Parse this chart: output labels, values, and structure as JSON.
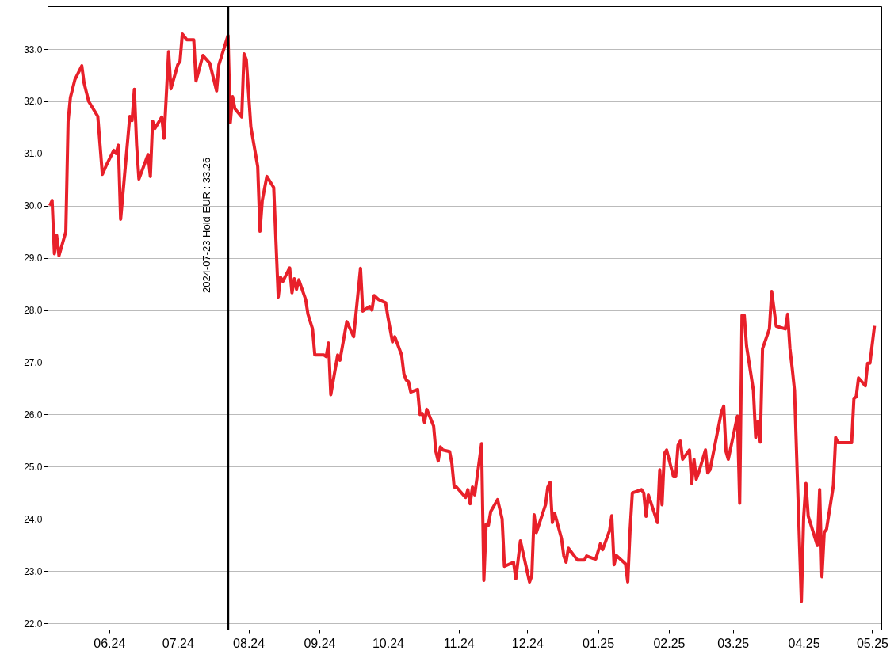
{
  "chart_data": {
    "type": "line",
    "xlim": [
      "2024-05-05",
      "2025-05-05"
    ],
    "ylim": [
      21.88,
      33.82
    ],
    "xticks": [
      {
        "value": "2024-06-01",
        "label": "06.24"
      },
      {
        "value": "2024-07-01",
        "label": "07.24"
      },
      {
        "value": "2024-08-01",
        "label": "08.24"
      },
      {
        "value": "2024-09-01",
        "label": "09.24"
      },
      {
        "value": "2024-10-01",
        "label": "10.24"
      },
      {
        "value": "2024-11-01",
        "label": "11.24"
      },
      {
        "value": "2024-12-01",
        "label": "12.24"
      },
      {
        "value": "2025-01-01",
        "label": "01.25"
      },
      {
        "value": "2025-02-01",
        "label": "02.25"
      },
      {
        "value": "2025-03-01",
        "label": "03.25"
      },
      {
        "value": "2025-04-01",
        "label": "04.25"
      },
      {
        "value": "2025-05-01",
        "label": "05.25"
      }
    ],
    "yticks": [
      {
        "value": 22,
        "label": "22.0"
      },
      {
        "value": 23,
        "label": "23.0"
      },
      {
        "value": 24,
        "label": "24.0"
      },
      {
        "value": 25,
        "label": "25.0"
      },
      {
        "value": 26,
        "label": "26.0"
      },
      {
        "value": 27,
        "label": "27.0"
      },
      {
        "value": 28,
        "label": "28.0"
      },
      {
        "value": 29,
        "label": "29.0"
      },
      {
        "value": 30,
        "label": "30.0"
      },
      {
        "value": 31,
        "label": "31.0"
      },
      {
        "value": 32,
        "label": "32.0"
      },
      {
        "value": 33,
        "label": "33.0"
      }
    ],
    "grid": "y",
    "marker": "none",
    "line_style": "solid",
    "ref_lines": [
      {
        "axis": "x",
        "value": "2024-07-23",
        "label": "2024-07-23 Hold EUR : 33.26",
        "color": "#000000"
      }
    ],
    "x": [
      "2024-05-06",
      "2024-05-07",
      "2024-05-08",
      "2024-05-09",
      "2024-05-10",
      "2024-05-13",
      "2024-05-14",
      "2024-05-15",
      "2024-05-17",
      "2024-05-20",
      "2024-05-21",
      "2024-05-23",
      "2024-05-27",
      "2024-05-29",
      "2024-05-31",
      "2024-06-03",
      "2024-06-04",
      "2024-06-05",
      "2024-06-06",
      "2024-06-10",
      "2024-06-11",
      "2024-06-12",
      "2024-06-13",
      "2024-06-14",
      "2024-06-18",
      "2024-06-19",
      "2024-06-20",
      "2024-06-21",
      "2024-06-24",
      "2024-06-25",
      "2024-06-27",
      "2024-06-28",
      "2024-07-01",
      "2024-07-02",
      "2024-07-03",
      "2024-07-05",
      "2024-07-08",
      "2024-07-09",
      "2024-07-12",
      "2024-07-15",
      "2024-07-18",
      "2024-07-19",
      "2024-07-23",
      "2024-07-24",
      "2024-07-25",
      "2024-07-26",
      "2024-07-29",
      "2024-07-30",
      "2024-07-31",
      "2024-08-02",
      "2024-08-05",
      "2024-08-06",
      "2024-08-07",
      "2024-08-09",
      "2024-08-12",
      "2024-08-14",
      "2024-08-15",
      "2024-08-16",
      "2024-08-19",
      "2024-08-20",
      "2024-08-21",
      "2024-08-22",
      "2024-08-23",
      "2024-08-26",
      "2024-08-27",
      "2024-08-29",
      "2024-08-30",
      "2024-09-03",
      "2024-09-04",
      "2024-09-05",
      "2024-09-06",
      "2024-09-09",
      "2024-09-10",
      "2024-09-13",
      "2024-09-16",
      "2024-09-19",
      "2024-09-20",
      "2024-09-23",
      "2024-09-24",
      "2024-09-25",
      "2024-09-27",
      "2024-09-30",
      "2024-10-01",
      "2024-10-03",
      "2024-10-04",
      "2024-10-07",
      "2024-10-08",
      "2024-10-09",
      "2024-10-10",
      "2024-10-11",
      "2024-10-14",
      "2024-10-15",
      "2024-10-16",
      "2024-10-17",
      "2024-10-18",
      "2024-10-21",
      "2024-10-22",
      "2024-10-23",
      "2024-10-24",
      "2024-10-25",
      "2024-10-28",
      "2024-10-29",
      "2024-10-30",
      "2024-10-31",
      "2024-11-04",
      "2024-11-05",
      "2024-11-06",
      "2024-11-07",
      "2024-11-08",
      "2024-11-11",
      "2024-11-12",
      "2024-11-13",
      "2024-11-14",
      "2024-11-15",
      "2024-11-18",
      "2024-11-20",
      "2024-11-21",
      "2024-11-25",
      "2024-11-26",
      "2024-11-28",
      "2024-12-02",
      "2024-12-03",
      "2024-12-04",
      "2024-12-05",
      "2024-12-09",
      "2024-12-10",
      "2024-12-11",
      "2024-12-12",
      "2024-12-13",
      "2024-12-16",
      "2024-12-17",
      "2024-12-18",
      "2024-12-19",
      "2024-12-23",
      "2024-12-26",
      "2024-12-27",
      "2024-12-30",
      "2024-12-31",
      "2025-01-02",
      "2025-01-03",
      "2025-01-06",
      "2025-01-07",
      "2025-01-08",
      "2025-01-09",
      "2025-01-13",
      "2025-01-14",
      "2025-01-15",
      "2025-01-16",
      "2025-01-20",
      "2025-01-21",
      "2025-01-22",
      "2025-01-23",
      "2025-01-27",
      "2025-01-28",
      "2025-01-29",
      "2025-01-30",
      "2025-01-31",
      "2025-02-03",
      "2025-02-04",
      "2025-02-05",
      "2025-02-06",
      "2025-02-07",
      "2025-02-10",
      "2025-02-11",
      "2025-02-12",
      "2025-02-13",
      "2025-02-14",
      "2025-02-17",
      "2025-02-18",
      "2025-02-19",
      "2025-02-24",
      "2025-02-25",
      "2025-02-26",
      "2025-02-27",
      "2025-03-03",
      "2025-03-04",
      "2025-03-05",
      "2025-03-06",
      "2025-03-07",
      "2025-03-10",
      "2025-03-11",
      "2025-03-12",
      "2025-03-13",
      "2025-03-14",
      "2025-03-17",
      "2025-03-18",
      "2025-03-20",
      "2025-03-24",
      "2025-03-25",
      "2025-03-26",
      "2025-03-27",
      "2025-03-28",
      "2025-03-31",
      "2025-04-01",
      "2025-04-02",
      "2025-04-03",
      "2025-04-07",
      "2025-04-08",
      "2025-04-09",
      "2025-04-10",
      "2025-04-11",
      "2025-04-14",
      "2025-04-15",
      "2025-04-16",
      "2025-04-22",
      "2025-04-23",
      "2025-04-24",
      "2025-04-25",
      "2025-04-28",
      "2025-04-29",
      "2025-04-30",
      "2025-05-02"
    ],
    "series": [
      {
        "color": "#e8202a",
        "values": [
          30.0,
          30.1,
          29.08,
          29.43,
          29.04,
          29.5,
          31.62,
          32.07,
          32.42,
          32.68,
          32.35,
          32.0,
          31.71,
          30.6,
          30.8,
          31.06,
          31.0,
          31.16,
          29.74,
          31.71,
          31.63,
          32.23,
          31.16,
          30.51,
          30.98,
          30.56,
          31.62,
          31.48,
          31.7,
          31.29,
          32.95,
          32.24,
          32.7,
          32.77,
          33.29,
          33.18,
          33.18,
          32.39,
          32.88,
          32.73,
          32.2,
          32.7,
          33.26,
          31.59,
          32.09,
          31.86,
          31.7,
          32.91,
          32.8,
          31.51,
          30.75,
          29.51,
          30.1,
          30.56,
          30.35,
          28.25,
          28.63,
          28.55,
          28.81,
          28.33,
          28.6,
          28.4,
          28.58,
          28.2,
          27.92,
          27.64,
          27.14,
          27.14,
          27.11,
          27.37,
          26.38,
          27.14,
          27.04,
          27.78,
          27.49,
          28.8,
          27.98,
          28.07,
          28.0,
          28.28,
          28.2,
          28.14,
          27.87,
          27.39,
          27.49,
          27.14,
          26.78,
          26.66,
          26.63,
          26.43,
          26.48,
          26.0,
          26.02,
          25.85,
          26.1,
          25.78,
          25.29,
          25.11,
          25.38,
          25.32,
          25.29,
          25.06,
          24.61,
          24.61,
          24.41,
          24.56,
          24.29,
          24.61,
          24.46,
          25.44,
          22.82,
          23.9,
          23.88,
          24.14,
          24.37,
          24.0,
          23.09,
          23.17,
          22.85,
          23.58,
          22.79,
          22.91,
          24.08,
          23.74,
          24.27,
          24.61,
          24.7,
          23.93,
          24.11,
          23.62,
          23.29,
          23.17,
          23.44,
          23.21,
          23.21,
          23.29,
          23.24,
          23.23,
          23.52,
          23.41,
          23.77,
          24.06,
          23.12,
          23.3,
          23.14,
          22.79,
          23.77,
          24.5,
          24.56,
          24.5,
          24.05,
          24.46,
          23.93,
          24.94,
          24.27,
          25.25,
          25.32,
          24.81,
          24.81,
          25.41,
          25.49,
          25.14,
          25.32,
          24.68,
          25.14,
          24.76,
          24.88,
          25.32,
          24.88,
          24.94,
          26.05,
          26.16,
          25.29,
          25.14,
          25.97,
          24.3,
          27.9,
          27.9,
          27.31,
          26.46,
          25.56,
          25.87,
          25.47,
          27.26,
          27.64,
          28.36,
          27.69,
          27.64,
          27.92,
          27.26,
          26.88,
          26.46,
          22.42,
          24.03,
          24.68,
          24.05,
          23.49,
          24.56,
          22.89,
          23.74,
          23.8,
          24.64,
          25.56,
          25.46,
          25.46,
          26.31,
          26.34,
          26.7,
          26.55,
          26.98,
          26.98,
          27.7
        ]
      }
    ]
  }
}
